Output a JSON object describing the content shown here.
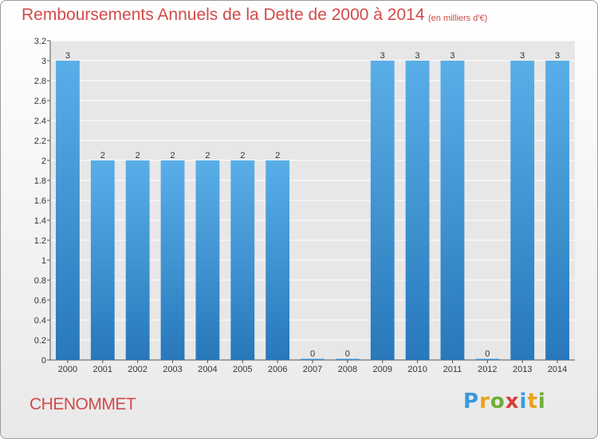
{
  "header": {
    "title": "Remboursements Annuels de la Dette de 2000 à 2014",
    "subtitle": "(en milliers d'€)"
  },
  "footer": {
    "name": "CHENOMMET",
    "logo_letters": [
      "P",
      "r",
      "o",
      "x",
      "i",
      "t",
      "i"
    ],
    "logo_colors": [
      "#3a9ad9",
      "#e8a21b",
      "#6fae36",
      "#d93b3b",
      "#3a9ad9",
      "#e8a21b",
      "#6fae36"
    ]
  },
  "chart_data": {
    "type": "bar",
    "categories": [
      "2000",
      "2001",
      "2002",
      "2003",
      "2004",
      "2005",
      "2006",
      "2007",
      "2008",
      "2009",
      "2010",
      "2011",
      "2012",
      "2013",
      "2014"
    ],
    "values": [
      3,
      2,
      2,
      2,
      2,
      2,
      2,
      0,
      0,
      3,
      3,
      3,
      0,
      3,
      3
    ],
    "value_labels": [
      "3",
      "2",
      "2",
      "2",
      "2",
      "2",
      "2",
      "0",
      "0",
      "3",
      "3",
      "3",
      "0",
      "3",
      "3"
    ],
    "ylim": [
      0,
      3.2
    ],
    "yticks": [
      "0",
      "0.2",
      "0.4",
      "0.6",
      "0.8",
      "1",
      "1.2",
      "1.4",
      "1.6",
      "1.8",
      "2",
      "2.2",
      "2.4",
      "2.6",
      "2.8",
      "3",
      "3.2"
    ],
    "ytick_values": [
      0,
      0.2,
      0.4,
      0.6,
      0.8,
      1,
      1.2,
      1.4,
      1.6,
      1.8,
      2,
      2.2,
      2.4,
      2.6,
      2.8,
      3,
      3.2
    ],
    "grid": true,
    "colors": {
      "bar_light": "#5aaee8",
      "bar_dark": "#2878ba",
      "plot_bg": "#e7e7e7",
      "grid": "#ffffff",
      "text": "#333333"
    }
  }
}
